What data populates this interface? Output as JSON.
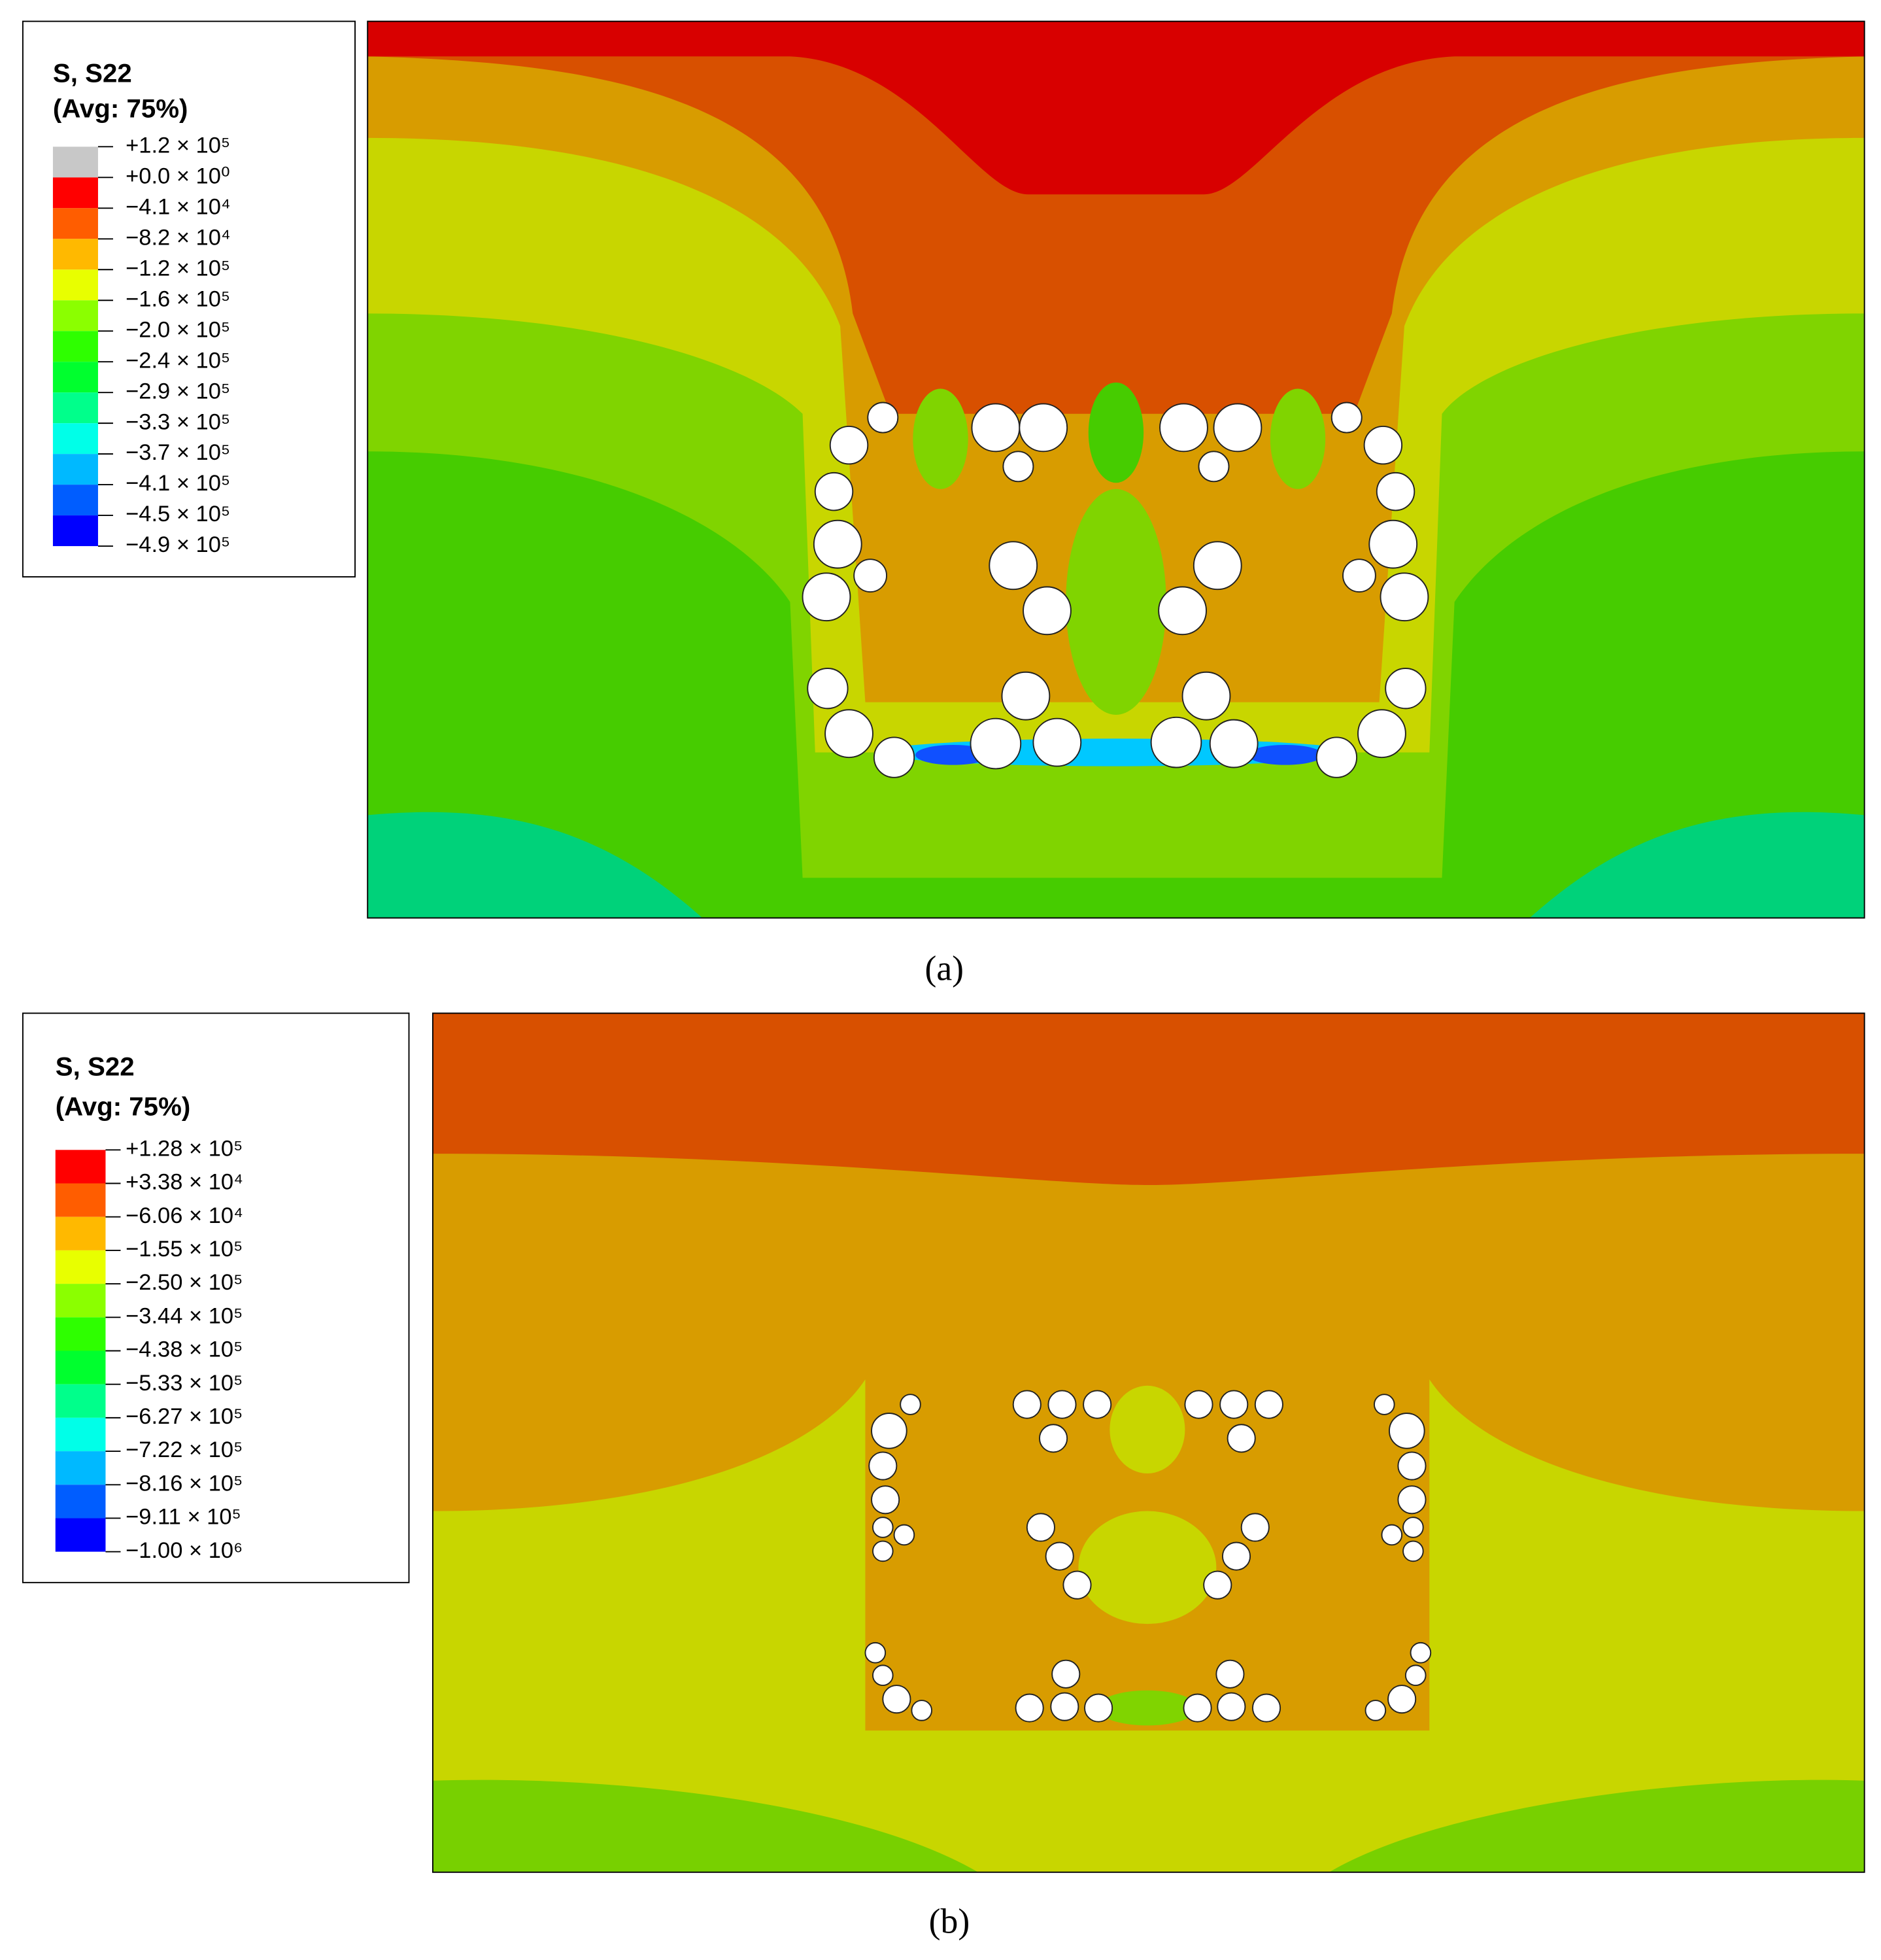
{
  "panels": [
    {
      "legend": {
        "title": "S, S22",
        "subtitle": "(Avg: 75%)",
        "labels": [
          "+1.2 × 10⁵",
          "+0.0 × 10⁰",
          "−4.1 × 10⁴",
          "−8.2 × 10⁴",
          "−1.2 × 10⁵",
          "−1.6 × 10⁵",
          "−2.0 × 10⁵",
          "−2.4 × 10⁵",
          "−2.9 × 10⁵",
          "−3.3 × 10⁵",
          "−3.7 × 10⁵",
          "−4.1 × 10⁵",
          "−4.5 × 10⁵",
          "−4.9 × 10⁵"
        ],
        "colors": [
          "#c8c8c8",
          "#ff0000",
          "#ff5d00",
          "#ffb900",
          "#e8ff00",
          "#8bff00",
          "#2eff00",
          "#00ff2e",
          "#00ff8b",
          "#00ffe8",
          "#00b9ff",
          "#005dff",
          "#0000ff"
        ]
      },
      "caption": "(a)"
    },
    {
      "legend": {
        "title": "S, S22",
        "subtitle": "(Avg: 75%)",
        "labels": [
          "+1.28 × 10⁵",
          "+3.38 × 10⁴",
          "−6.06 × 10⁴",
          "−1.55 × 10⁵",
          "−2.50 × 10⁵",
          "−3.44 × 10⁵",
          "−4.38 × 10⁵",
          "−5.33 × 10⁵",
          "−6.27 × 10⁵",
          "−7.22 × 10⁵",
          "−8.16 × 10⁵",
          "−9.11 × 10⁵",
          "−1.00 × 10⁶"
        ],
        "colors": [
          "#ff0000",
          "#ff5d00",
          "#ffb900",
          "#e8ff00",
          "#8bff00",
          "#2eff00",
          "#00ff2e",
          "#00ff8b",
          "#00ffe8",
          "#00b9ff",
          "#005dff",
          "#0000ff"
        ]
      },
      "caption": "(b)"
    }
  ]
}
